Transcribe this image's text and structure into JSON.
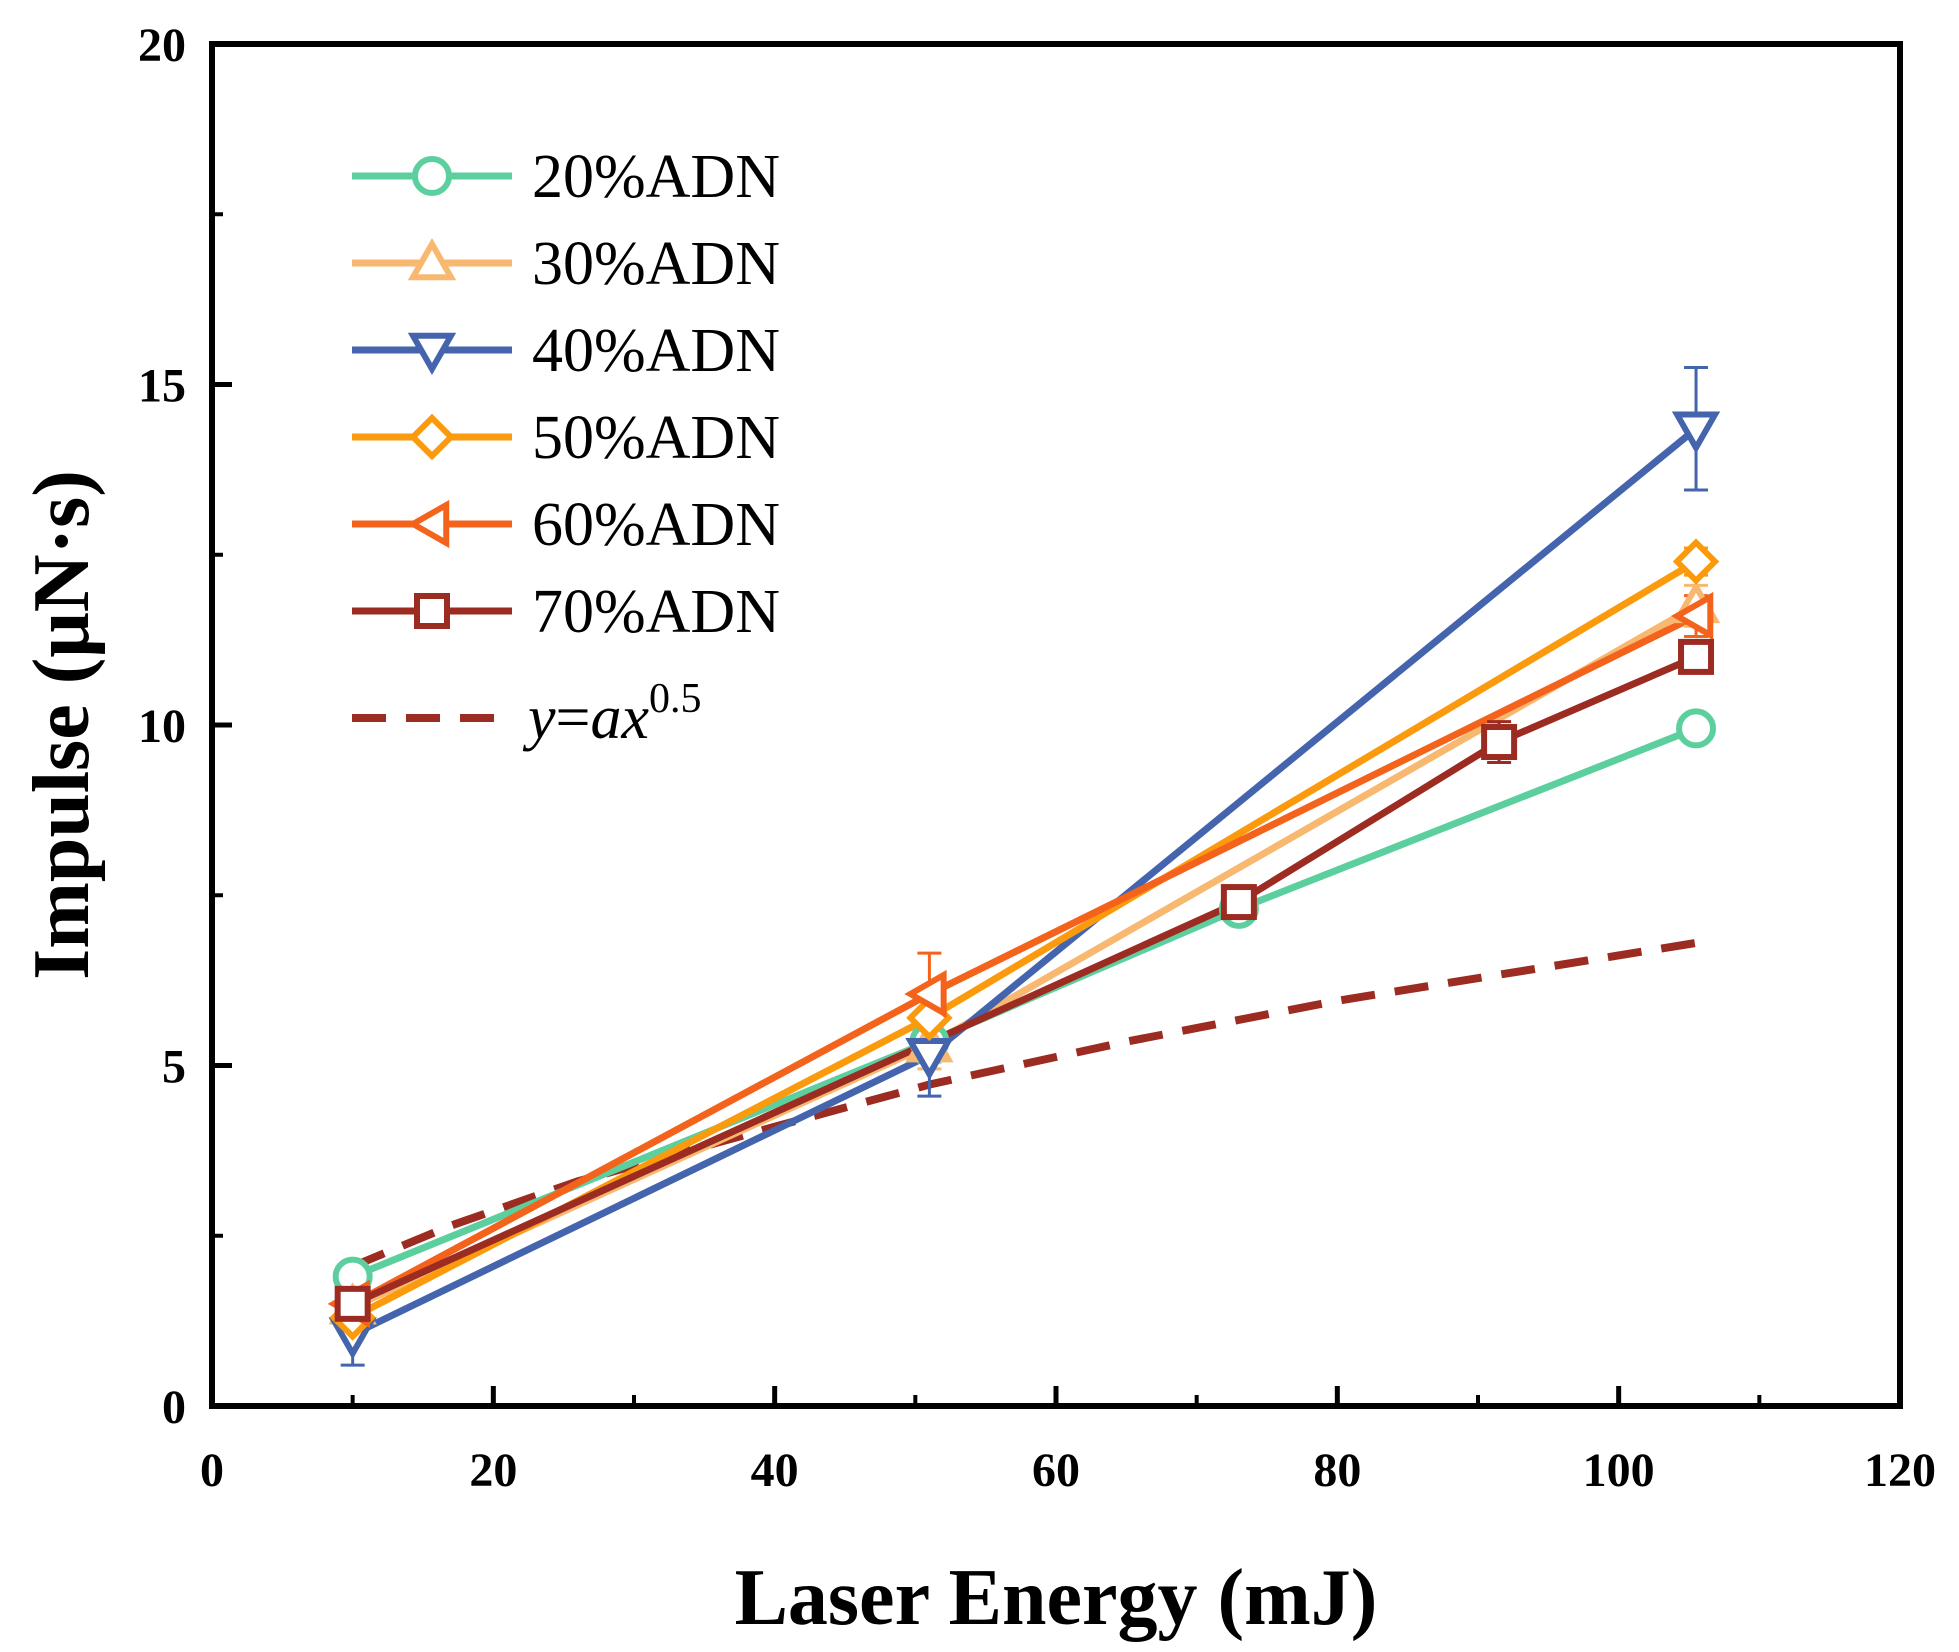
{
  "chart_data": {
    "type": "line",
    "title": "",
    "xlabel": "Laser Energy (mJ)",
    "ylabel": "Impulse (μN·s)",
    "xlim": [
      0,
      120
    ],
    "ylim": [
      0,
      20
    ],
    "xticks": [
      0,
      20,
      40,
      60,
      80,
      100,
      120
    ],
    "yticks": [
      0,
      5,
      10,
      15,
      20
    ],
    "xtick_labels": [
      "0",
      "20",
      "40",
      "60",
      "80",
      "100",
      "120"
    ],
    "ytick_labels": [
      "0",
      "5",
      "10",
      "15",
      "20"
    ],
    "grid": false,
    "legend_position": "top-left",
    "series": [
      {
        "name": "20%ADN",
        "color": "#5ccf9f",
        "marker": "circle",
        "x": [
          10,
          51,
          73,
          105.5
        ],
        "y": [
          1.9,
          5.35,
          7.3,
          9.95
        ],
        "err": [
          0.15,
          0.3,
          0,
          0.2
        ]
      },
      {
        "name": "30%ADN",
        "color": "#f9b870",
        "marker": "triangle-up",
        "x": [
          10,
          51,
          105.5
        ],
        "y": [
          1.45,
          5.3,
          11.75
        ],
        "err": [
          0.2,
          0.35,
          0.3
        ]
      },
      {
        "name": "40%ADN",
        "color": "#4464ad",
        "marker": "triangle-down",
        "x": [
          10,
          51,
          105.5
        ],
        "y": [
          1.05,
          5.15,
          14.35
        ],
        "err": [
          0.45,
          0.6,
          0.9
        ]
      },
      {
        "name": "50%ADN",
        "color": "#fb9a0c",
        "marker": "diamond",
        "x": [
          10,
          51,
          105.5
        ],
        "y": [
          1.3,
          5.7,
          12.4
        ],
        "err": [
          0.3,
          0.35,
          0.2
        ]
      },
      {
        "name": "60%ADN",
        "color": "#f4631c",
        "marker": "triangle-left",
        "x": [
          10,
          51,
          105.5
        ],
        "y": [
          1.5,
          6.05,
          11.6
        ],
        "err": [
          0.3,
          0.6,
          0.3
        ]
      },
      {
        "name": "70%ADN",
        "color": "#9c2b22",
        "marker": "square",
        "x": [
          10,
          73,
          91.5,
          105.5
        ],
        "y": [
          1.5,
          7.4,
          9.75,
          11.0
        ],
        "err": [
          0.2,
          0.1,
          0.3,
          0.15
        ]
      }
    ],
    "fit": {
      "name_parts": [
        "y",
        "=",
        "ax",
        "0.5"
      ],
      "color": "#9c2b22",
      "style": "dashed",
      "x": [
        10,
        17,
        26,
        40,
        51,
        65,
        80,
        95,
        105.5
      ],
      "y": [
        2.05,
        2.65,
        3.3,
        4.1,
        4.72,
        5.35,
        5.95,
        6.45,
        6.8
      ]
    }
  }
}
